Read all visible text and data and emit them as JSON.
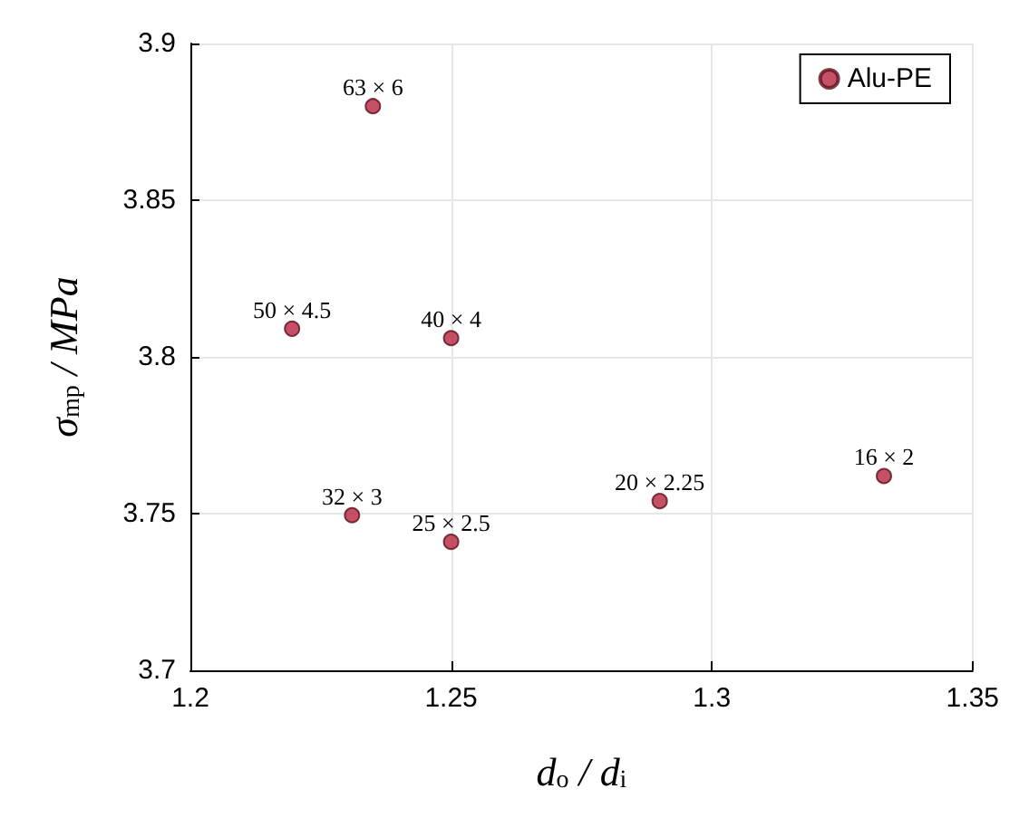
{
  "chart_data": {
    "type": "scatter",
    "xlabel": "d$_{o}$ / d$_{i}$",
    "ylabel": "σ$_{mp}$ / MPa",
    "series": [
      {
        "name": "Alu-PE",
        "color": "#b8243f",
        "x": [
          1.235,
          1.2195,
          1.25,
          1.231,
          1.25,
          1.29,
          1.333
        ],
        "values": [
          3.88,
          3.809,
          3.806,
          3.7495,
          3.741,
          3.754,
          3.762
        ]
      }
    ],
    "annotations": [
      {
        "text": "63 × 6",
        "x": 1.235,
        "y": 3.88
      },
      {
        "text": "50 × 4.5",
        "x": 1.2195,
        "y": 3.809
      },
      {
        "text": "40 × 4",
        "x": 1.25,
        "y": 3.806
      },
      {
        "text": "32 × 3",
        "x": 1.231,
        "y": 3.7495
      },
      {
        "text": "25 × 2.5",
        "x": 1.25,
        "y": 3.741
      },
      {
        "text": "20 × 2.25",
        "x": 1.29,
        "y": 3.754
      },
      {
        "text": "16 × 2",
        "x": 1.333,
        "y": 3.762
      }
    ],
    "xlim": [
      1.2,
      1.35
    ],
    "xticks": [
      1.2,
      1.25,
      1.3,
      1.35
    ],
    "ylim": [
      3.7,
      3.9
    ],
    "yticks": [
      3.7,
      3.75,
      3.8,
      3.85,
      3.9
    ],
    "grid": true,
    "legend": "top right",
    "marker": "circle"
  }
}
